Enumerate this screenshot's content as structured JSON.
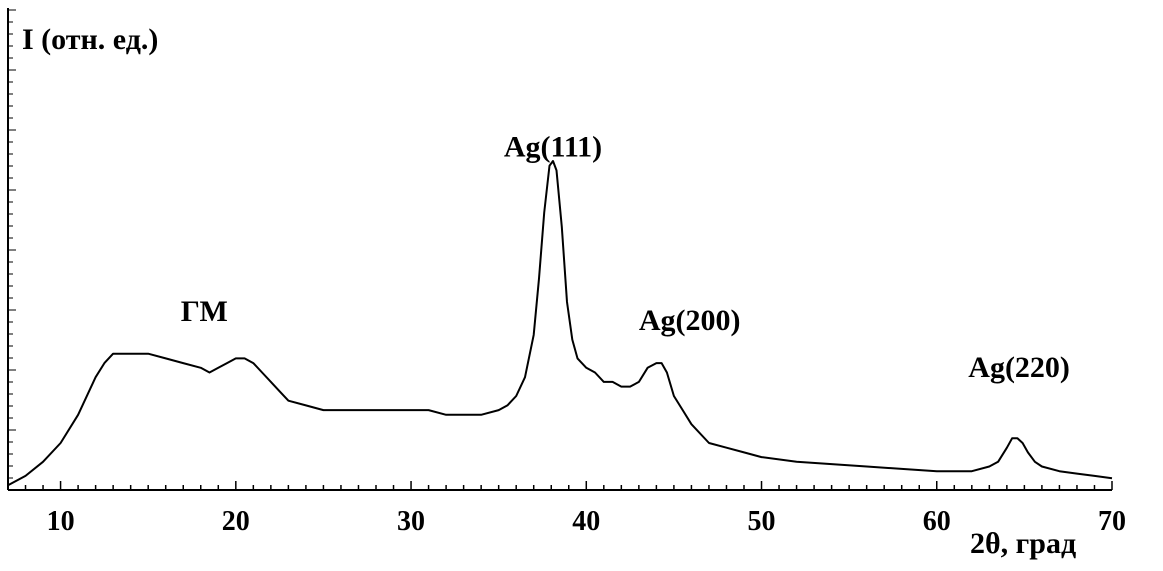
{
  "chart_data": {
    "type": "line",
    "title": "",
    "ylabel": "I (отн. ед.)",
    "xlabel": "2θ, град",
    "xlim": [
      7,
      70
    ],
    "ylim": [
      0,
      1
    ],
    "x_ticks": [
      10,
      20,
      30,
      40,
      50,
      60,
      70
    ],
    "x_tick_labels": [
      "10",
      "20",
      "30",
      "40",
      "50",
      "60",
      "70"
    ],
    "y_tick_labels_shown": false,
    "grid": false,
    "line_color": "#000000",
    "annotations": [
      {
        "text": "ГМ",
        "x": 18.2,
        "y": 0.36
      },
      {
        "text": "Ag(111)",
        "x": 38.1,
        "y": 0.71
      },
      {
        "text": "Ag(200)",
        "x": 45.9,
        "y": 0.34
      },
      {
        "text": "Ag(220)",
        "x": 64.7,
        "y": 0.24
      }
    ],
    "series": [
      {
        "x": [
          7,
          8,
          9,
          10,
          11,
          12,
          12.5,
          13,
          13.5,
          14,
          15,
          16,
          17,
          18,
          18.5,
          19,
          19.5,
          20,
          20.5,
          21,
          21.5,
          22,
          22.5,
          23,
          24,
          25,
          26,
          27,
          28,
          29,
          30,
          31,
          32,
          33,
          34,
          35,
          35.5,
          36,
          36.5,
          37,
          37.3,
          37.6,
          37.9,
          38.1,
          38.3,
          38.6,
          38.9,
          39.2,
          39.5,
          40,
          40.5,
          41,
          41.5,
          42,
          42.5,
          43,
          43.5,
          44,
          44.3,
          44.6,
          45,
          45.5,
          46,
          47,
          48,
          49,
          50,
          52,
          54,
          56,
          58,
          60,
          61,
          62,
          63,
          63.5,
          64,
          64.3,
          64.6,
          64.9,
          65.2,
          65.6,
          66,
          67,
          68,
          69,
          70
        ],
        "y": [
          0.01,
          0.03,
          0.06,
          0.1,
          0.16,
          0.24,
          0.27,
          0.29,
          0.29,
          0.29,
          0.29,
          0.28,
          0.27,
          0.26,
          0.25,
          0.26,
          0.27,
          0.28,
          0.28,
          0.27,
          0.25,
          0.23,
          0.21,
          0.19,
          0.18,
          0.17,
          0.17,
          0.17,
          0.17,
          0.17,
          0.17,
          0.17,
          0.16,
          0.16,
          0.16,
          0.17,
          0.18,
          0.2,
          0.24,
          0.33,
          0.45,
          0.59,
          0.69,
          0.7,
          0.68,
          0.56,
          0.4,
          0.32,
          0.28,
          0.26,
          0.25,
          0.23,
          0.23,
          0.22,
          0.22,
          0.23,
          0.26,
          0.27,
          0.27,
          0.25,
          0.2,
          0.17,
          0.14,
          0.1,
          0.09,
          0.08,
          0.07,
          0.06,
          0.055,
          0.05,
          0.045,
          0.04,
          0.04,
          0.04,
          0.05,
          0.06,
          0.09,
          0.11,
          0.11,
          0.1,
          0.08,
          0.06,
          0.05,
          0.04,
          0.035,
          0.03,
          0.025
        ]
      }
    ]
  }
}
